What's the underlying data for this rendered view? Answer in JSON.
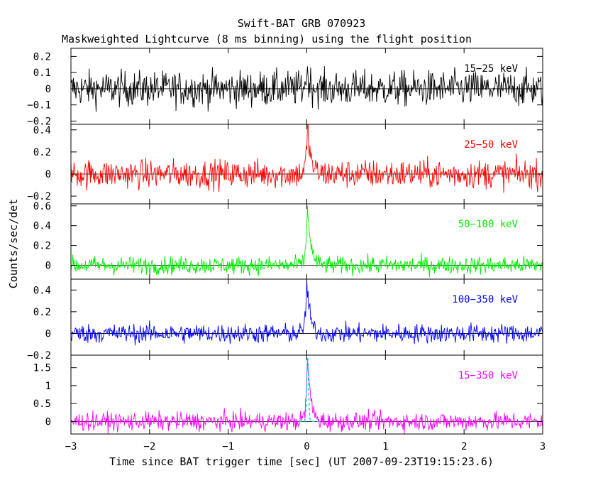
{
  "chart_data": {
    "type": "line",
    "title": "Swift-BAT GRB 070923",
    "subtitle": "Maskweighted Lightcurve (8 ms binning) using the flight position",
    "xlabel": "Time since BAT trigger time [sec] (UT 2007-09-23T19:15:23.6)",
    "ylabel": "Counts/sec/det",
    "xlim": [
      -3.0,
      3.0
    ],
    "x_ticks": [
      -3,
      -2,
      -1,
      0,
      1,
      2,
      3
    ],
    "x_tick_labels": [
      "−3",
      "−2",
      "−1",
      "0",
      "1",
      "2",
      "3"
    ],
    "grid": false,
    "panels": [
      {
        "label": "15−25 keV",
        "color": "#000000",
        "ylim": [
          -0.22,
          0.25
        ],
        "y_ticks": [
          -0.2,
          -0.1,
          0,
          0.1,
          0.2
        ],
        "y_tick_labels": [
          "−0.2",
          "−0.1",
          "0",
          "0.1",
          "0.2"
        ],
        "noise_sigma": 0.055,
        "peak": {
          "x": 0.0,
          "y": 0.1
        }
      },
      {
        "label": "25−50 keV",
        "color": "#ff0000",
        "ylim": [
          -0.27,
          0.45
        ],
        "y_ticks": [
          -0.2,
          0,
          0.2,
          0.4
        ],
        "y_tick_labels": [
          "−0.2",
          "0",
          "0.2",
          "0.4"
        ],
        "noise_sigma": 0.065,
        "peak": {
          "x": 0.01,
          "y": 0.42
        }
      },
      {
        "label": "50−100 keV",
        "color": "#00ee00",
        "ylim": [
          -0.14,
          0.62
        ],
        "y_ticks": [
          0,
          0.2,
          0.4,
          0.6
        ],
        "y_tick_labels": [
          "0",
          "0.2",
          "0.4",
          "0.6"
        ],
        "noise_sigma": 0.045,
        "peak": {
          "x": 0.01,
          "y": 0.62
        }
      },
      {
        "label": "100−350 keV",
        "color": "#0000ff",
        "ylim": [
          -0.2,
          0.5
        ],
        "y_ticks": [
          -0.2,
          0,
          0.2,
          0.4
        ],
        "y_tick_labels": [
          "−0.2",
          "0",
          "0.2",
          "0.4"
        ],
        "noise_sigma": 0.045,
        "peak": {
          "x": 0.0,
          "y": 0.48
        }
      },
      {
        "label": "15−350 keV",
        "color": "#ff00ff",
        "ylim": [
          -0.35,
          1.85
        ],
        "y_ticks": [
          0,
          0.5,
          1,
          1.5
        ],
        "y_tick_labels": [
          "0",
          "0.5",
          "1",
          "1.5"
        ],
        "noise_sigma": 0.13,
        "peak": {
          "x": 0.01,
          "y": 1.8
        },
        "model_color": "#00cccc"
      }
    ]
  }
}
